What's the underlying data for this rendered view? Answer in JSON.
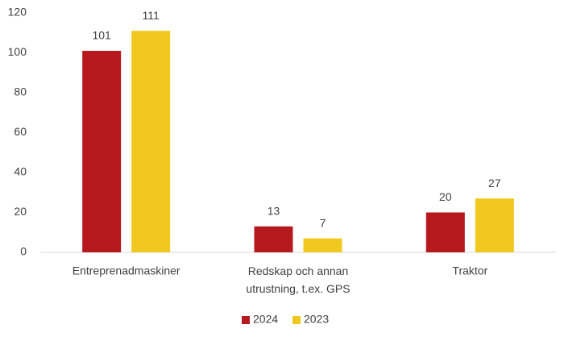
{
  "chart_data": {
    "type": "bar",
    "categories": [
      "Entreprenadmaskiner",
      "Redskap och annan utrustning, t.ex. GPS",
      "Traktor"
    ],
    "series": [
      {
        "name": "2024",
        "color": "#b5191e",
        "values": [
          101,
          13,
          20
        ]
      },
      {
        "name": "2023",
        "color": "#f0c81e",
        "values": [
          111,
          7,
          27
        ]
      }
    ],
    "ylim": [
      0,
      120
    ],
    "yticks": [
      0,
      20,
      40,
      60,
      80,
      100,
      120
    ],
    "grid": false,
    "legend": "bottom"
  }
}
